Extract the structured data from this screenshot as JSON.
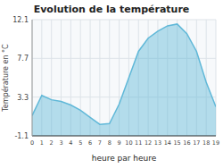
{
  "chart_data": {
    "type": "area",
    "title": "Evolution de la température",
    "x_label": "heure par heure",
    "y_label": "Température en °C",
    "x": [
      0,
      1,
      2,
      3,
      4,
      5,
      6,
      7,
      8,
      9,
      10,
      11,
      12,
      13,
      14,
      15,
      16,
      17,
      18,
      19
    ],
    "values": [
      1.2,
      3.5,
      3.0,
      2.8,
      2.4,
      1.8,
      1.0,
      0.2,
      0.3,
      2.5,
      5.5,
      8.5,
      10.0,
      10.8,
      11.4,
      11.6,
      10.5,
      8.5,
      5.0,
      2.2
    ],
    "color": "#60b8d8",
    "xlim": [
      0,
      19
    ],
    "xticks": [
      0,
      1,
      2,
      3,
      4,
      5,
      6,
      7,
      8,
      9,
      10,
      11,
      12,
      13,
      14,
      15,
      16,
      17,
      18,
      19
    ],
    "ylim": [
      -1.1,
      12.1
    ],
    "yticks": [
      -1.1,
      3.3,
      7.7,
      12.1
    ],
    "grid": true
  }
}
